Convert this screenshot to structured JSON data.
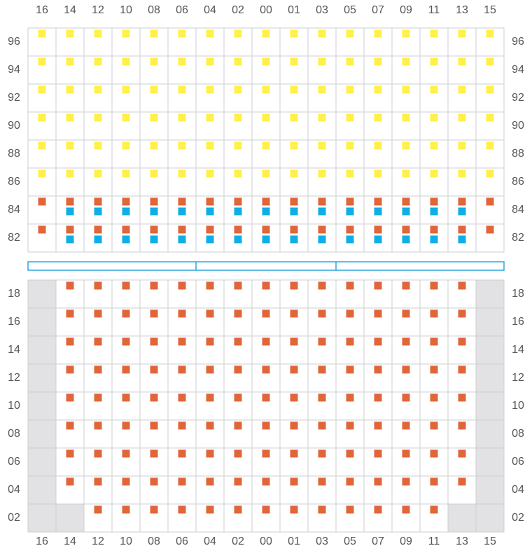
{
  "columns": [
    "16",
    "14",
    "12",
    "10",
    "08",
    "06",
    "04",
    "02",
    "00",
    "01",
    "03",
    "05",
    "07",
    "09",
    "11",
    "13",
    "15"
  ],
  "upper_rows": [
    "96",
    "94",
    "92",
    "90",
    "88",
    "86",
    "84",
    "82"
  ],
  "lower_rows": [
    "18",
    "16",
    "14",
    "12",
    "10",
    "08",
    "06",
    "04",
    "02"
  ]
}
